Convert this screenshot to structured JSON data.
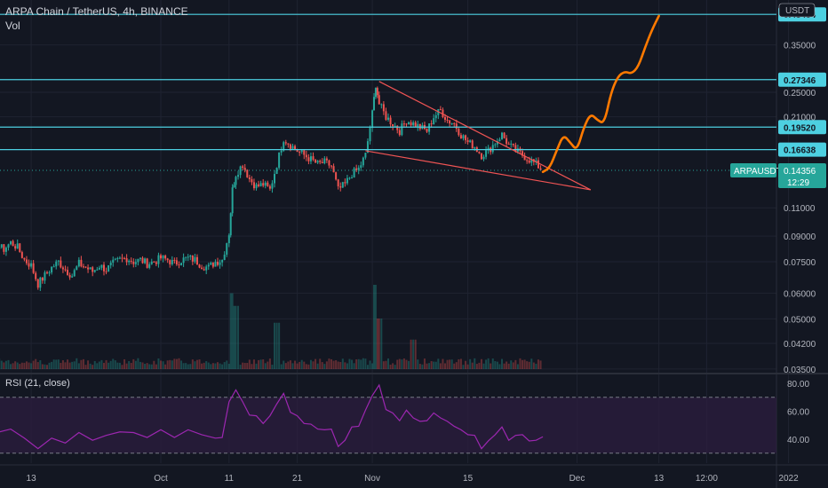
{
  "header": {
    "title": "ARPA Chain / TetherUS, 4h, BINANCE",
    "vol_label": "Vol",
    "rsi_label": "RSI (21, close)",
    "currency": "USDT"
  },
  "colors": {
    "background": "#131722",
    "up": "#26a69a",
    "down": "#ef5350",
    "hline": "#4dd0e1",
    "trendline": "#f05454",
    "projection": "#ff7a00",
    "rsi": "#9c27b0",
    "rsi_band": "#2a1d3d",
    "price_tag": "#26a69a"
  },
  "chart_data": [
    {
      "type": "candlestick",
      "title": "ARPA Chain / TetherUS, 4h, BINANCE",
      "y_scale": "log",
      "y_ticks": [
        "0.35000",
        "0.25000",
        "0.21000",
        "0.11000",
        "0.09000",
        "0.07500",
        "0.06000",
        "0.05000",
        "0.04200",
        "0.03500"
      ],
      "y_tick_values": [
        0.35,
        0.25,
        0.21,
        0.11,
        0.09,
        0.075,
        0.06,
        0.05,
        0.042,
        0.035
      ],
      "x_ticks": [
        "13",
        "Oct",
        "11",
        "21",
        "Nov",
        "15",
        "Dec",
        "13",
        "12:00",
        "2022"
      ],
      "x_tick_days": [
        -19,
        0,
        10,
        20,
        31,
        45,
        61,
        73,
        80,
        92
      ],
      "ohlc_path": [
        [
          -32,
          0.09
        ],
        [
          -31,
          0.083
        ],
        [
          -30,
          0.077
        ],
        [
          -29,
          0.08
        ],
        [
          -28,
          0.076
        ],
        [
          -27,
          0.078
        ],
        [
          -26,
          0.075
        ],
        [
          -25,
          0.081
        ],
        [
          -24,
          0.084
        ],
        [
          -23,
          0.082
        ],
        [
          -22,
          0.086
        ],
        [
          -21,
          0.083
        ],
        [
          -20,
          0.076
        ],
        [
          -19,
          0.073
        ],
        [
          -18,
          0.064
        ],
        [
          -17,
          0.068
        ],
        [
          -16,
          0.072
        ],
        [
          -15,
          0.075
        ],
        [
          -14,
          0.071
        ],
        [
          -13,
          0.068
        ],
        [
          -12,
          0.074
        ],
        [
          -11,
          0.072
        ],
        [
          -10,
          0.07
        ],
        [
          -9,
          0.073
        ],
        [
          -8,
          0.071
        ],
        [
          -7,
          0.074
        ],
        [
          -6,
          0.076
        ],
        [
          -5,
          0.077
        ],
        [
          -4,
          0.075
        ],
        [
          -3,
          0.076
        ],
        [
          -2,
          0.074
        ],
        [
          -1,
          0.075
        ],
        [
          0,
          0.077
        ],
        [
          1,
          0.076
        ],
        [
          2,
          0.074
        ],
        [
          3,
          0.076
        ],
        [
          4,
          0.077
        ],
        [
          5,
          0.076
        ],
        [
          6,
          0.073
        ],
        [
          7,
          0.072
        ],
        [
          8,
          0.075
        ],
        [
          9,
          0.076
        ],
        [
          10,
          0.092
        ],
        [
          10.5,
          0.125
        ],
        [
          11,
          0.14
        ],
        [
          12,
          0.15
        ],
        [
          13,
          0.135
        ],
        [
          14,
          0.128
        ],
        [
          15,
          0.13
        ],
        [
          16,
          0.125
        ],
        [
          17,
          0.15
        ],
        [
          18,
          0.18
        ],
        [
          19,
          0.172
        ],
        [
          20,
          0.165
        ],
        [
          21,
          0.16
        ],
        [
          22,
          0.155
        ],
        [
          23,
          0.15
        ],
        [
          24,
          0.152
        ],
        [
          25,
          0.148
        ],
        [
          26,
          0.125
        ],
        [
          27,
          0.13
        ],
        [
          28,
          0.14
        ],
        [
          29,
          0.145
        ],
        [
          30,
          0.16
        ],
        [
          31,
          0.215
        ],
        [
          31.5,
          0.265
        ],
        [
          32,
          0.23
        ],
        [
          33,
          0.21
        ],
        [
          34,
          0.2
        ],
        [
          35,
          0.19
        ],
        [
          36,
          0.205
        ],
        [
          37,
          0.2
        ],
        [
          38,
          0.195
        ],
        [
          39,
          0.19
        ],
        [
          40,
          0.21
        ],
        [
          41,
          0.22
        ],
        [
          42,
          0.205
        ],
        [
          43,
          0.2
        ],
        [
          44,
          0.185
        ],
        [
          45,
          0.175
        ],
        [
          46,
          0.17
        ],
        [
          47,
          0.16
        ],
        [
          48,
          0.165
        ],
        [
          49,
          0.175
        ],
        [
          50,
          0.185
        ],
        [
          51,
          0.172
        ],
        [
          52,
          0.165
        ],
        [
          53,
          0.16
        ],
        [
          54,
          0.155
        ],
        [
          55,
          0.15
        ],
        [
          56,
          0.143
        ]
      ],
      "volume_spikes": [
        [
          10.5,
          0.9
        ],
        [
          11,
          0.75
        ],
        [
          17,
          0.55
        ],
        [
          31.5,
          1.0
        ],
        [
          32,
          0.6
        ],
        [
          37,
          0.35
        ]
      ],
      "horizontal_levels": [
        0.43484,
        0.27346,
        0.1952,
        0.16638
      ],
      "level_labels": [
        "0.43484",
        "0.27346",
        "0.19520",
        "0.16638"
      ],
      "current_price": 0.14356,
      "current_price_label": "0.14356",
      "symbol_tag": "ARPAUSDT",
      "countdown": "12:29",
      "upper_trendline": [
        [
          32,
          0.27
        ],
        [
          63,
          0.125
        ]
      ],
      "lower_trendline": [
        [
          30,
          0.165
        ],
        [
          63,
          0.125
        ]
      ],
      "projection_path": [
        [
          56,
          0.142
        ],
        [
          57,
          0.146
        ],
        [
          58,
          0.165
        ],
        [
          59,
          0.185
        ],
        [
          60,
          0.175
        ],
        [
          61,
          0.165
        ],
        [
          62,
          0.195
        ],
        [
          63,
          0.215
        ],
        [
          64,
          0.205
        ],
        [
          65,
          0.2
        ],
        [
          66,
          0.25
        ],
        [
          67,
          0.28
        ],
        [
          68,
          0.29
        ],
        [
          69,
          0.285
        ],
        [
          70,
          0.3
        ],
        [
          71,
          0.345
        ],
        [
          72,
          0.39
        ],
        [
          73,
          0.43
        ]
      ]
    },
    {
      "type": "line",
      "title": "RSI (21, close)",
      "y_ticks": [
        "80.00",
        "60.00",
        "40.00"
      ],
      "y_tick_values": [
        80,
        60,
        40
      ],
      "band_upper": 70,
      "band_lower": 30,
      "rsi_path": [
        [
          -32,
          42
        ],
        [
          -30,
          36
        ],
        [
          -28,
          40
        ],
        [
          -26,
          38
        ],
        [
          -24,
          44
        ],
        [
          -22,
          48
        ],
        [
          -20,
          40
        ],
        [
          -18,
          34
        ],
        [
          -16,
          40
        ],
        [
          -14,
          38
        ],
        [
          -12,
          44
        ],
        [
          -10,
          40
        ],
        [
          -8,
          42
        ],
        [
          -6,
          46
        ],
        [
          -4,
          44
        ],
        [
          -2,
          42
        ],
        [
          0,
          46
        ],
        [
          2,
          42
        ],
        [
          4,
          46
        ],
        [
          6,
          44
        ],
        [
          8,
          40
        ],
        [
          9,
          42
        ],
        [
          10,
          66
        ],
        [
          11,
          76
        ],
        [
          12,
          66
        ],
        [
          13,
          58
        ],
        [
          14,
          56
        ],
        [
          15,
          52
        ],
        [
          16,
          56
        ],
        [
          17,
          66
        ],
        [
          18,
          72
        ],
        [
          19,
          60
        ],
        [
          20,
          56
        ],
        [
          21,
          52
        ],
        [
          22,
          50
        ],
        [
          23,
          48
        ],
        [
          24,
          46
        ],
        [
          25,
          48
        ],
        [
          26,
          34
        ],
        [
          27,
          40
        ],
        [
          28,
          48
        ],
        [
          29,
          50
        ],
        [
          30,
          60
        ],
        [
          31,
          72
        ],
        [
          32,
          78
        ],
        [
          33,
          62
        ],
        [
          34,
          58
        ],
        [
          35,
          54
        ],
        [
          36,
          60
        ],
        [
          37,
          56
        ],
        [
          38,
          52
        ],
        [
          39,
          54
        ],
        [
          40,
          58
        ],
        [
          41,
          56
        ],
        [
          42,
          52
        ],
        [
          43,
          50
        ],
        [
          44,
          46
        ],
        [
          45,
          44
        ],
        [
          46,
          42
        ],
        [
          47,
          34
        ],
        [
          48,
          38
        ],
        [
          49,
          44
        ],
        [
          50,
          48
        ],
        [
          51,
          40
        ],
        [
          52,
          42
        ],
        [
          53,
          44
        ],
        [
          54,
          38
        ],
        [
          55,
          40
        ],
        [
          56,
          41
        ]
      ]
    }
  ]
}
